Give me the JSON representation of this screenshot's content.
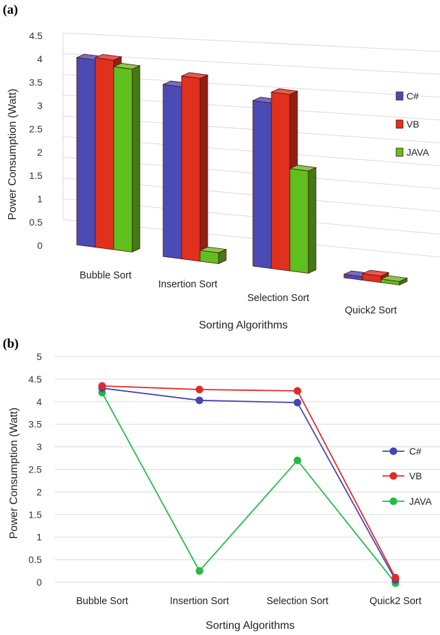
{
  "chart_data": [
    {
      "panel_label": "(a)",
      "type": "bar",
      "style": "3d-clustered-column",
      "categories": [
        "Bubble Sort",
        "Insertion Sort",
        "Selection Sort",
        "Quick2 Sort"
      ],
      "series": [
        {
          "name": "C#",
          "values": [
            4.3,
            3.95,
            3.8,
            0.0
          ]
        },
        {
          "name": "VB",
          "values": [
            4.35,
            4.2,
            4.05,
            0.15
          ]
        },
        {
          "name": "JAVA",
          "values": [
            4.2,
            0.25,
            2.35,
            0.0
          ]
        }
      ],
      "yticks": [
        "0",
        "0.5",
        "1",
        "1.5",
        "2",
        "2.5",
        "3",
        "3.5",
        "4",
        "4.5"
      ],
      "ylim": [
        0,
        4.5
      ],
      "xlabel": "Sorting Algorithms",
      "ylabel": "Power Consumption (Watt)",
      "legend": "right",
      "grid": true,
      "colors": {
        "C#": "#4b4bb5",
        "VB": "#e0301e",
        "JAVA": "#5fbf1e"
      }
    },
    {
      "panel_label": "(b)",
      "type": "line",
      "categories": [
        "Bubble Sort",
        "Insertion Sort",
        "Selection Sort",
        "Quick2 Sort"
      ],
      "series": [
        {
          "name": "C#",
          "values": [
            4.3,
            4.03,
            3.98,
            0.05
          ]
        },
        {
          "name": "VB",
          "values": [
            4.35,
            4.27,
            4.24,
            0.1
          ]
        },
        {
          "name": "JAVA",
          "values": [
            4.2,
            0.25,
            2.7,
            -0.02
          ]
        }
      ],
      "yticks": [
        "0",
        "0.5",
        "1",
        "1.5",
        "2",
        "2.5",
        "3",
        "3.5",
        "4",
        "4.5",
        "5"
      ],
      "ylim": [
        0,
        5
      ],
      "xlabel": "Sorting Algorithms",
      "ylabel": "Power Consumption (Watt)",
      "legend": "right",
      "grid": true,
      "colors": {
        "C#": "#4646b0",
        "VB": "#e22a2a",
        "JAVA": "#22bb44"
      }
    }
  ]
}
